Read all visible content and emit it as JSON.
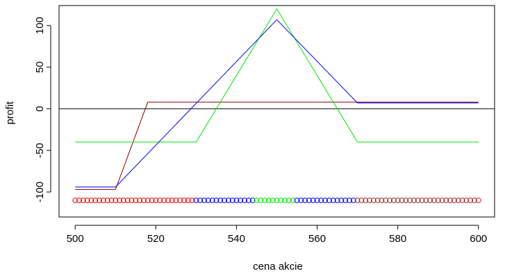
{
  "chart_data": {
    "type": "line",
    "title": "",
    "xlabel": "cena akcie",
    "ylabel": "profit",
    "xlim": [
      496,
      604
    ],
    "ylim": [
      -130,
      124
    ],
    "x_ticks": [
      500,
      520,
      540,
      560,
      580,
      600
    ],
    "x_tick_labels": [
      "500",
      "520",
      "540",
      "560",
      "580",
      "600"
    ],
    "y_ticks": [
      -100,
      -50,
      0,
      50,
      100
    ],
    "y_tick_labels": [
      "-100",
      "-50",
      "0",
      "50",
      "100"
    ],
    "hline": {
      "y": 0,
      "color": "#000000"
    },
    "grid": false,
    "legend": "none",
    "series": [
      {
        "color": "#8b0000",
        "x": [
          500,
          510,
          518,
          600
        ],
        "y": [
          -97,
          -97,
          8,
          8
        ]
      },
      {
        "color": "#00e600",
        "x": [
          500,
          530,
          550,
          570,
          600
        ],
        "y": [
          -40,
          -40,
          120,
          -40,
          -40
        ]
      },
      {
        "color": "#0000ff",
        "x": [
          500,
          510,
          550,
          570,
          600
        ],
        "y": [
          -94,
          -94,
          107,
          7,
          7
        ]
      }
    ],
    "markers": {
      "y": -110,
      "x_start": 500,
      "x_end": 600,
      "step": 1,
      "shape": "open-circle",
      "color_ranges": [
        {
          "from": 500,
          "to": 530,
          "color": "#ff0000"
        },
        {
          "from": 530,
          "to": 545,
          "color": "#0000ff"
        },
        {
          "from": 545,
          "to": 555,
          "color": "#00e600"
        },
        {
          "from": 555,
          "to": 570,
          "color": "#0000ff"
        },
        {
          "from": 570,
          "to": 600,
          "color": "#a52a2a"
        }
      ]
    }
  }
}
